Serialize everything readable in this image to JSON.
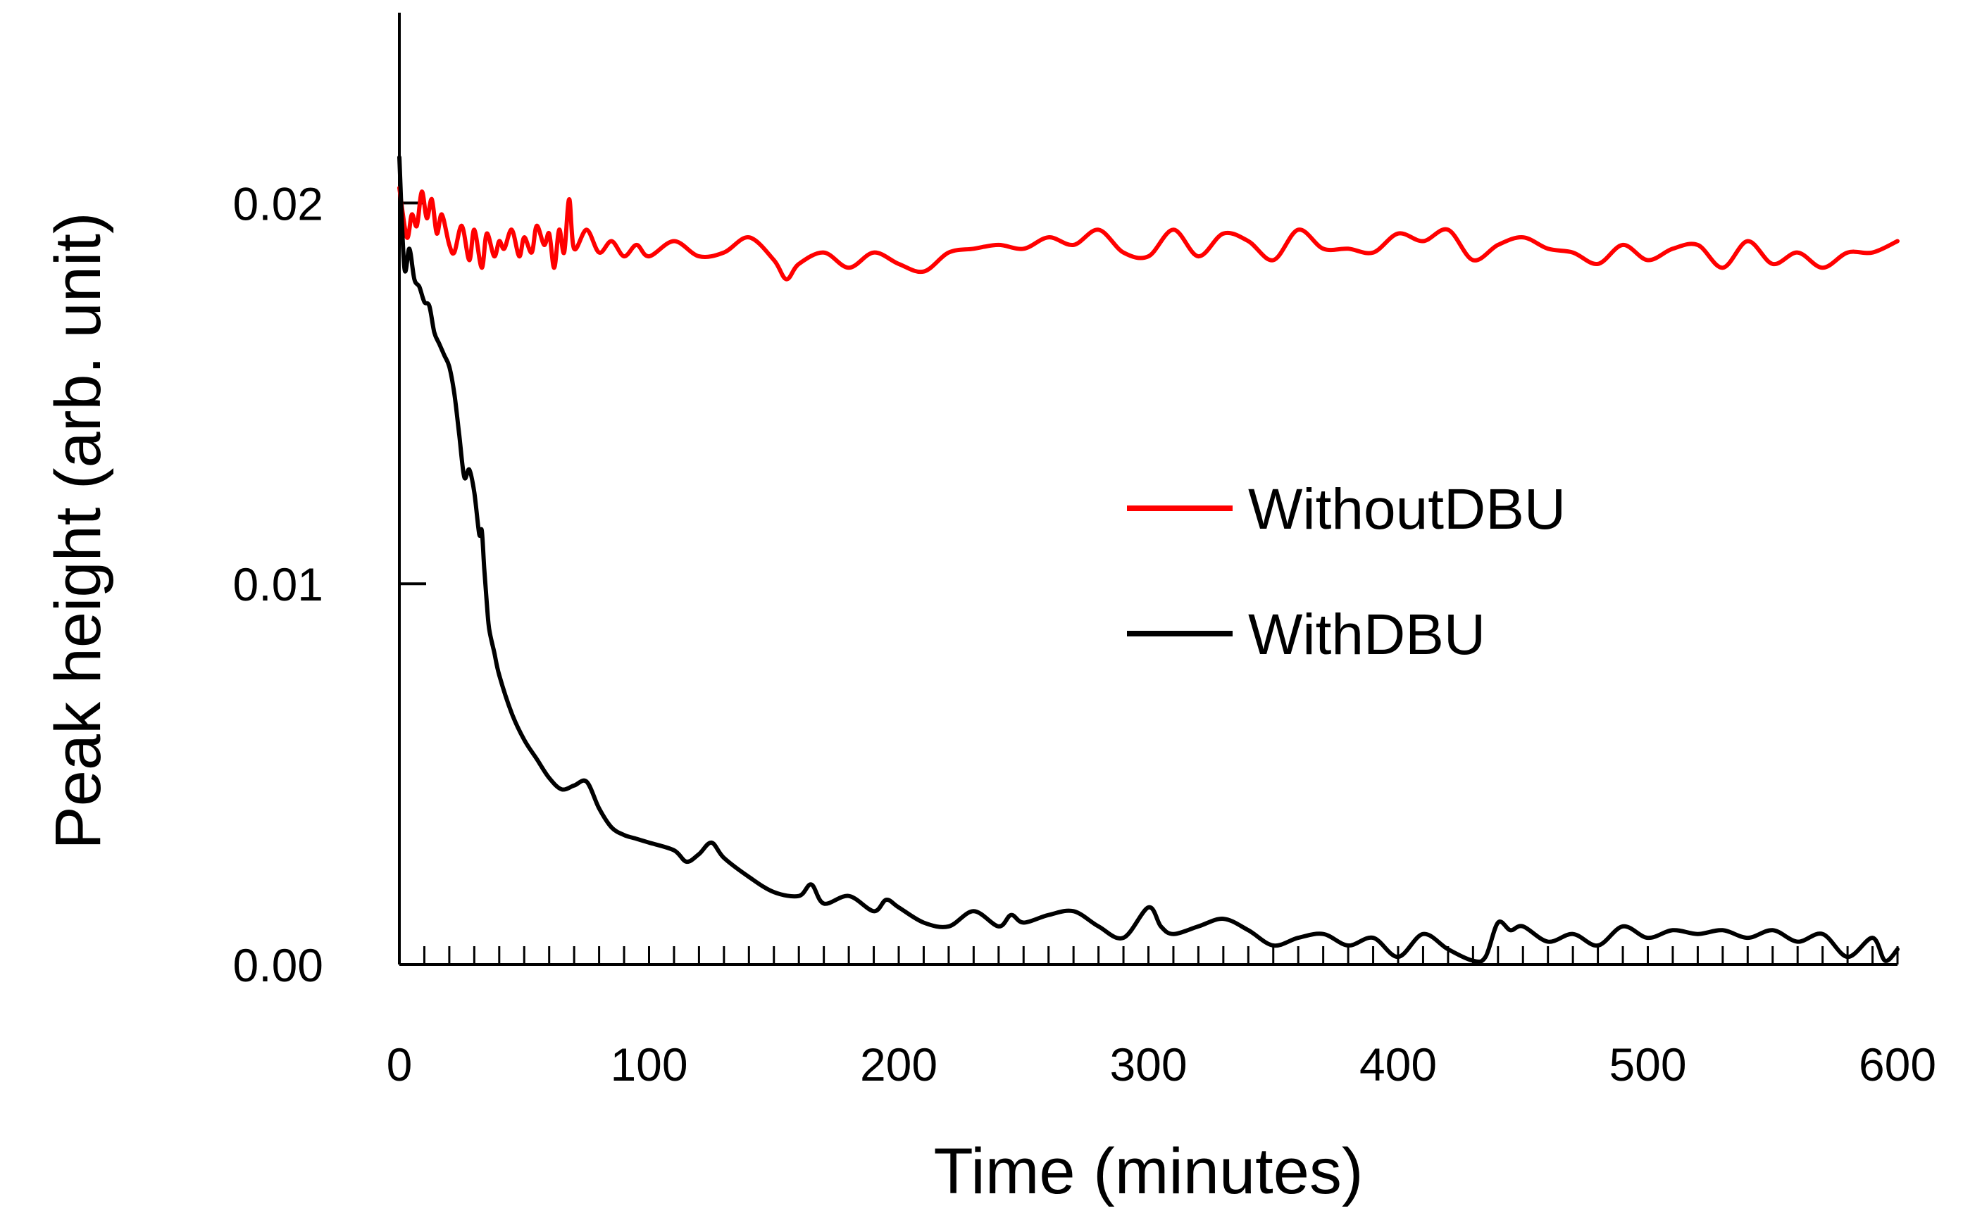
{
  "chart_data": {
    "type": "line",
    "title": "",
    "xlabel": "Time (minutes)",
    "ylabel": "Peak height (arb. unit)",
    "xlim": [
      0,
      600
    ],
    "ylim": [
      0,
      0.025
    ],
    "x_ticks": [
      0,
      100,
      200,
      300,
      400,
      500,
      600
    ],
    "x_tick_labels": [
      "0",
      "100",
      "200",
      "300",
      "400",
      "500",
      "600"
    ],
    "y_ticks": [
      0,
      0.01,
      0.02
    ],
    "y_tick_labels": [
      "0.00",
      "0.01",
      "0.02"
    ],
    "x_minor_tick_step": 10,
    "grid": false,
    "legend_position": "center-right",
    "series": [
      {
        "name": "WithoutDBU",
        "color": "#ff0000",
        "x": [
          0,
          3,
          5,
          7,
          9,
          11,
          13,
          15,
          17,
          20,
          22,
          25,
          28,
          30,
          33,
          35,
          38,
          40,
          42,
          45,
          48,
          50,
          53,
          55,
          58,
          60,
          62,
          64,
          66,
          68,
          70,
          75,
          80,
          85,
          90,
          95,
          100,
          110,
          120,
          130,
          140,
          150,
          155,
          160,
          170,
          180,
          190,
          200,
          210,
          220,
          230,
          240,
          250,
          260,
          270,
          280,
          290,
          300,
          310,
          320,
          330,
          340,
          350,
          360,
          370,
          380,
          390,
          400,
          410,
          420,
          430,
          440,
          450,
          460,
          470,
          480,
          490,
          500,
          510,
          520,
          530,
          540,
          550,
          560,
          570,
          580,
          590,
          600
        ],
        "y": [
          0.0204,
          0.0191,
          0.0197,
          0.0194,
          0.0203,
          0.0196,
          0.0201,
          0.0192,
          0.0197,
          0.0189,
          0.0187,
          0.0194,
          0.0185,
          0.0193,
          0.0183,
          0.0192,
          0.0186,
          0.019,
          0.0188,
          0.0193,
          0.0186,
          0.0191,
          0.0187,
          0.0194,
          0.0189,
          0.0192,
          0.0183,
          0.0193,
          0.0187,
          0.0201,
          0.0188,
          0.0193,
          0.0187,
          0.019,
          0.0186,
          0.0189,
          0.0186,
          0.019,
          0.0186,
          0.0187,
          0.0191,
          0.0185,
          0.018,
          0.0184,
          0.0187,
          0.0183,
          0.0187,
          0.0184,
          0.0182,
          0.0187,
          0.0188,
          0.0189,
          0.0188,
          0.0191,
          0.0189,
          0.0193,
          0.0187,
          0.0186,
          0.0193,
          0.0186,
          0.0192,
          0.019,
          0.0185,
          0.0193,
          0.0188,
          0.0188,
          0.0187,
          0.0192,
          0.019,
          0.0193,
          0.0185,
          0.0189,
          0.0191,
          0.0188,
          0.0187,
          0.0184,
          0.0189,
          0.0185,
          0.0188,
          0.0189,
          0.0183,
          0.019,
          0.0184,
          0.0187,
          0.0183,
          0.0187,
          0.0187,
          0.019
        ]
      },
      {
        "name": "WithDBU",
        "color": "#000000",
        "x": [
          0,
          2,
          4,
          6,
          8,
          10,
          12,
          14,
          16,
          18,
          20,
          22,
          24,
          26,
          28,
          30,
          32,
          33,
          34,
          35,
          36,
          38,
          40,
          45,
          50,
          55,
          60,
          65,
          70,
          75,
          80,
          85,
          90,
          95,
          100,
          110,
          115,
          120,
          125,
          130,
          140,
          150,
          160,
          165,
          170,
          180,
          190,
          195,
          200,
          210,
          220,
          230,
          240,
          245,
          250,
          260,
          270,
          280,
          290,
          300,
          305,
          310,
          320,
          330,
          340,
          350,
          360,
          370,
          380,
          390,
          400,
          410,
          420,
          430,
          435,
          440,
          445,
          450,
          460,
          470,
          480,
          490,
          500,
          510,
          520,
          530,
          540,
          550,
          560,
          570,
          580,
          590,
          595,
          600
        ],
        "y": [
          0.0212,
          0.0183,
          0.0188,
          0.018,
          0.0178,
          0.0174,
          0.0173,
          0.0166,
          0.0163,
          0.016,
          0.0157,
          0.015,
          0.0139,
          0.0128,
          0.013,
          0.0124,
          0.0113,
          0.0114,
          0.0104,
          0.0095,
          0.0088,
          0.0082,
          0.0076,
          0.0066,
          0.0059,
          0.0054,
          0.0049,
          0.0046,
          0.0047,
          0.0048,
          0.0041,
          0.0036,
          0.0034,
          0.0033,
          0.0032,
          0.003,
          0.0027,
          0.0029,
          0.0032,
          0.0028,
          0.0023,
          0.0019,
          0.0018,
          0.0021,
          0.0016,
          0.0018,
          0.0014,
          0.0017,
          0.0015,
          0.0011,
          0.001,
          0.0014,
          0.001,
          0.0013,
          0.0011,
          0.0013,
          0.0014,
          0.001,
          0.0007,
          0.0015,
          0.001,
          0.0008,
          0.001,
          0.0012,
          0.0009,
          0.0005,
          0.0007,
          0.0008,
          0.0005,
          0.0007,
          0.0002,
          0.0008,
          0.0004,
          0.0001,
          0.0002,
          0.0011,
          0.0009,
          0.001,
          0.0006,
          0.0008,
          0.0005,
          0.001,
          0.0007,
          0.0009,
          0.0008,
          0.0009,
          0.0007,
          0.0009,
          0.0006,
          0.0008,
          0.0002,
          0.0007,
          0.0001,
          0.0004
        ]
      }
    ]
  }
}
